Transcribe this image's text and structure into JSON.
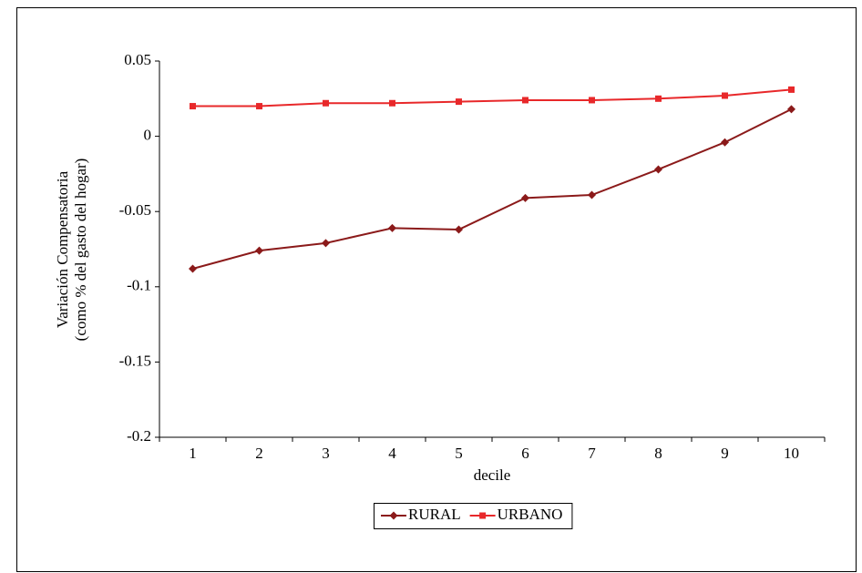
{
  "chart_data": {
    "type": "line",
    "ylabel": [
      "Variación Compensatoria",
      "(como % del gasto del hogar)"
    ],
    "xlabel": "decile",
    "categories": [
      "1",
      "2",
      "3",
      "4",
      "5",
      "6",
      "7",
      "8",
      "9",
      "10"
    ],
    "series": [
      {
        "name": "RURAL",
        "color": "#8b1a1a",
        "marker": "diamond",
        "values": [
          -0.088,
          -0.076,
          -0.071,
          -0.061,
          -0.062,
          -0.041,
          -0.039,
          -0.022,
          -0.004,
          0.018
        ]
      },
      {
        "name": "URBANO",
        "color": "#e8282a",
        "marker": "square",
        "values": [
          0.02,
          0.02,
          0.022,
          0.022,
          0.023,
          0.024,
          0.024,
          0.025,
          0.027,
          0.031
        ]
      }
    ],
    "ylim": [
      -0.2,
      0.05
    ],
    "yticks": [
      0.05,
      0,
      -0.05,
      -0.1,
      -0.15,
      -0.2
    ],
    "grid": false,
    "legend": "bottom"
  }
}
